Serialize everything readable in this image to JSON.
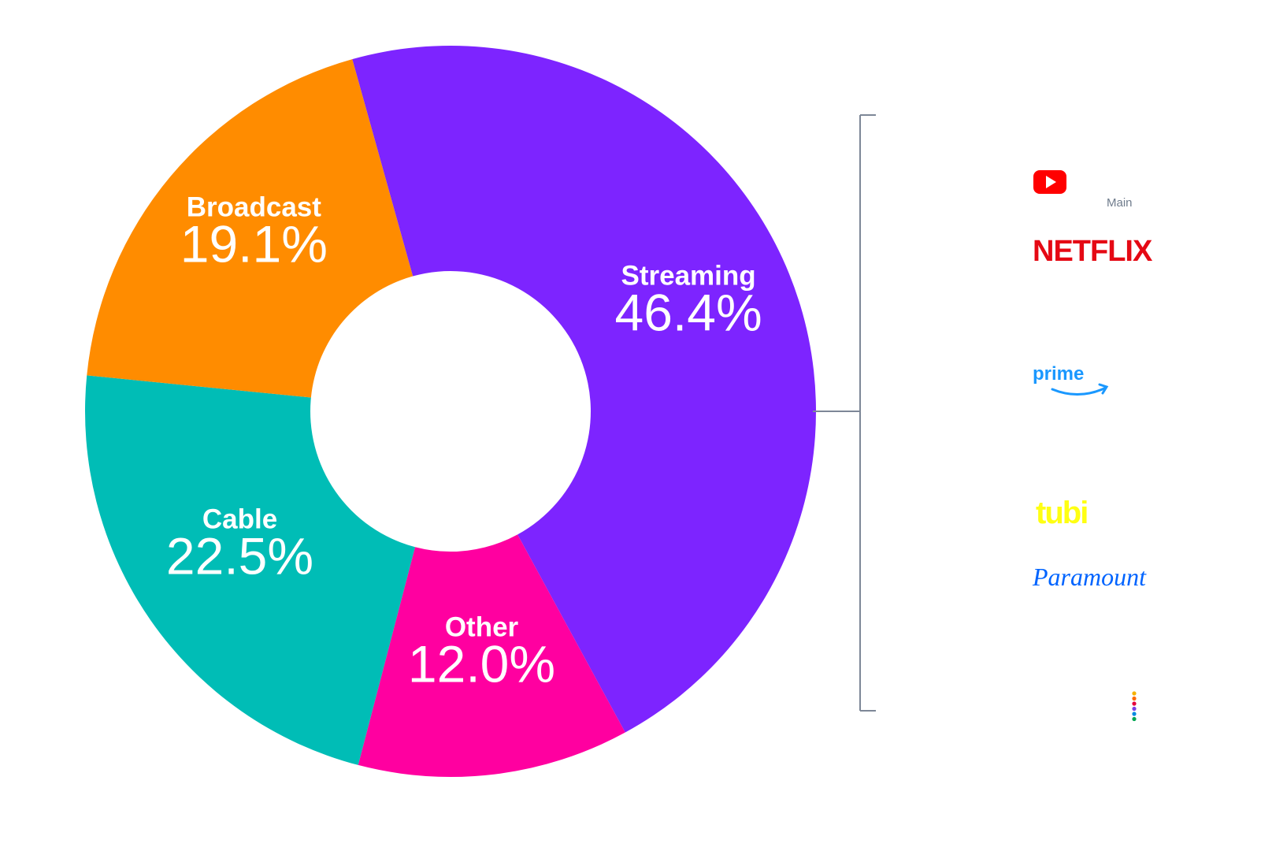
{
  "chart_data": {
    "type": "pie",
    "subtype": "donut",
    "slices": [
      {
        "label": "Streaming",
        "value": 46.4,
        "display": "46.4%",
        "color": "#7d24ff"
      },
      {
        "label": "Other",
        "value": 12.0,
        "display": "12.0%",
        "color": "#ff00a0"
      },
      {
        "label": "Cable",
        "value": 22.5,
        "display": "22.5%",
        "color": "#00bdb6"
      },
      {
        "label": "Broadcast",
        "value": 19.1,
        "display": "19.1%",
        "color": "#ff8c00"
      }
    ],
    "bracket_color": "#7d8797"
  },
  "streaming_brands": {
    "youtube_main_label": "Main",
    "netflix": "NETFLIX",
    "prime": "prime",
    "tubi": "tubi",
    "paramount": "Paramount"
  },
  "icons": [
    "youtube-logo-icon",
    "prime-smile-icon",
    "peacock-dots-icon"
  ]
}
